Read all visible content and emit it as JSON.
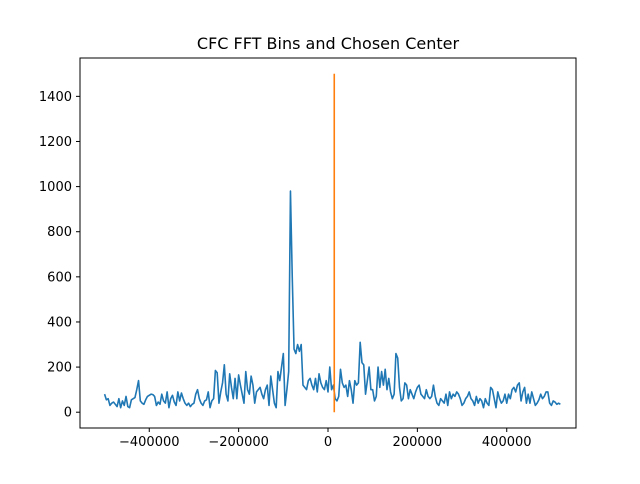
{
  "chart_data": {
    "type": "line",
    "title": "CFC FFT Bins and Chosen Center",
    "xlabel": "",
    "ylabel": "",
    "xlim": [
      -555000,
      555000
    ],
    "ylim": [
      -70,
      1570
    ],
    "x_ticks": [
      -400000,
      -200000,
      0,
      200000,
      400000
    ],
    "x_tick_labels": [
      "−400000",
      "−200000",
      "0",
      "200000",
      "400000"
    ],
    "y_ticks": [
      0,
      200,
      400,
      600,
      800,
      1000,
      1200,
      1400
    ],
    "y_tick_labels": [
      "0",
      "200",
      "400",
      "600",
      "800",
      "1000",
      "1200",
      "1400"
    ],
    "grid": false,
    "series": [
      {
        "color": "#1f77b4",
        "x_start": -500000,
        "x_step": 4000,
        "values": [
          80,
          55,
          60,
          30,
          40,
          45,
          35,
          25,
          60,
          20,
          50,
          30,
          70,
          25,
          20,
          55,
          60,
          65,
          100,
          140,
          50,
          40,
          35,
          55,
          70,
          75,
          80,
          78,
          70,
          30,
          45,
          35,
          80,
          50,
          40,
          90,
          20,
          60,
          75,
          45,
          30,
          90,
          50,
          85,
          60,
          40,
          30,
          40,
          25,
          35,
          40,
          80,
          100,
          60,
          40,
          30,
          50,
          55,
          90,
          20,
          50,
          60,
          185,
          175,
          40,
          90,
          130,
          210,
          80,
          50,
          170,
          110,
          60,
          150,
          60,
          165,
          120,
          80,
          40,
          180,
          100,
          80,
          160,
          120,
          40,
          90,
          100,
          110,
          80,
          60,
          100,
          120,
          30,
          160,
          100,
          40,
          20,
          180,
          140,
          200,
          260,
          30,
          100,
          180,
          980,
          600,
          280,
          260,
          300,
          270,
          300,
          120,
          110,
          100,
          140,
          150,
          120,
          100,
          150,
          90,
          170,
          130,
          110,
          100,
          140,
          90,
          200,
          100,
          120,
          60,
          50,
          70,
          190,
          130,
          110,
          120,
          70,
          140,
          100,
          40,
          140,
          120,
          130,
          310,
          220,
          210,
          80,
          140,
          200,
          100,
          100,
          50,
          70,
          200,
          110,
          180,
          120,
          190,
          100,
          150,
          90,
          60,
          80,
          260,
          240,
          110,
          50,
          60,
          130,
          120,
          60,
          100,
          80,
          60,
          90,
          110,
          120,
          80,
          70,
          60,
          100,
          70,
          60,
          70,
          120,
          70,
          40,
          30,
          60,
          50,
          40,
          80,
          30,
          90,
          60,
          80,
          70,
          90,
          80,
          60,
          30,
          40,
          60,
          70,
          90,
          60,
          50,
          30,
          70,
          40,
          60,
          50,
          20,
          60,
          40,
          30,
          110,
          100,
          60,
          20,
          90,
          60,
          40,
          50,
          80,
          40,
          80,
          60,
          100,
          110,
          90,
          120,
          130,
          50,
          90,
          110,
          40,
          80,
          40,
          90,
          60,
          30,
          40,
          55,
          80,
          60,
          70,
          90,
          90,
          40,
          30,
          50,
          45,
          35,
          40,
          35
        ]
      },
      {
        "color": "#ff7f0e",
        "x": [
          14000,
          14000
        ],
        "y": [
          0,
          1500
        ]
      }
    ]
  }
}
